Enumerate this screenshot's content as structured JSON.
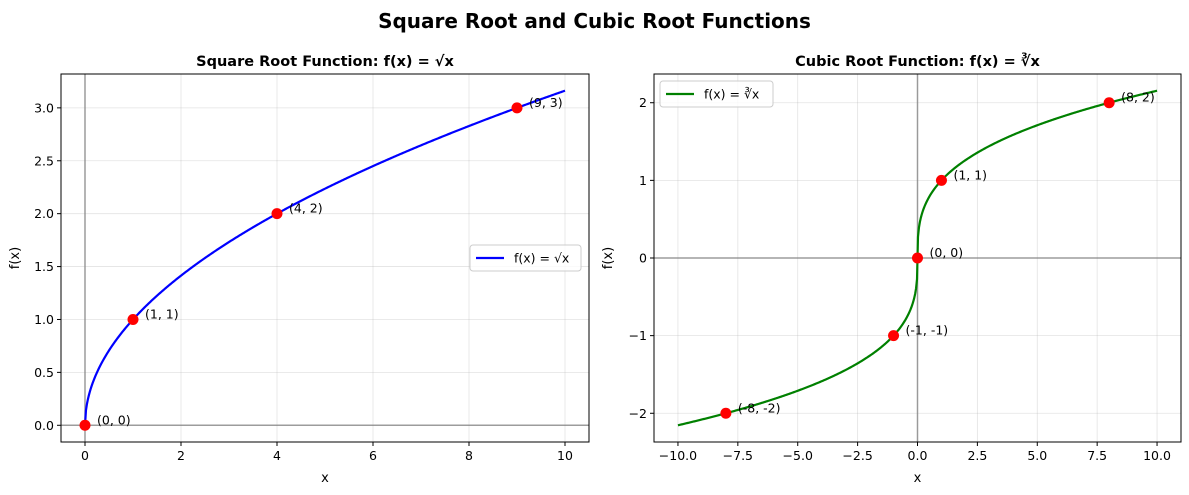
{
  "figure": {
    "title": "Square Root and Cubic Root Functions"
  },
  "chart_data": [
    {
      "type": "line",
      "title": "Square Root Function: f(x) = √x",
      "xlabel": "x",
      "ylabel": "f(x)",
      "xlim": [
        -0.5,
        10.5
      ],
      "ylim": [
        -0.158,
        3.32
      ],
      "xticks": [
        0,
        2,
        4,
        6,
        8,
        10
      ],
      "xtick_labels": [
        "0",
        "2",
        "4",
        "6",
        "8",
        "10"
      ],
      "yticks": [
        0.0,
        0.5,
        1.0,
        1.5,
        2.0,
        2.5,
        3.0
      ],
      "ytick_labels": [
        "0.0",
        "0.5",
        "1.0",
        "1.5",
        "2.0",
        "2.5",
        "3.0"
      ],
      "grid": true,
      "legend_position": "center-right",
      "series": [
        {
          "name": "f(x) = √x",
          "function": "sqrt",
          "x_range": [
            0,
            10
          ],
          "color": "#0000ff"
        }
      ],
      "points": [
        {
          "x": 0,
          "y": 0,
          "label": "(0, 0)"
        },
        {
          "x": 1,
          "y": 1,
          "label": "(1, 1)"
        },
        {
          "x": 4,
          "y": 2,
          "label": "(4, 2)"
        },
        {
          "x": 9,
          "y": 3,
          "label": "(9, 3)"
        }
      ],
      "point_color": "#ff0000"
    },
    {
      "type": "line",
      "title": "Cubic Root Function: f(x) = ∛x",
      "xlabel": "x",
      "ylabel": "f(x)",
      "xlim": [
        -11.0,
        11.0
      ],
      "ylim": [
        -2.37,
        2.37
      ],
      "xticks": [
        -10,
        -7.5,
        -5,
        -2.5,
        0,
        2.5,
        5,
        7.5,
        10
      ],
      "xtick_labels": [
        "−10.0",
        "−7.5",
        "−5.0",
        "−2.5",
        "0.0",
        "2.5",
        "5.0",
        "7.5",
        "10.0"
      ],
      "yticks": [
        -2,
        -1,
        0,
        1,
        2
      ],
      "ytick_labels": [
        "−2",
        "−1",
        "0",
        "1",
        "2"
      ],
      "grid": true,
      "legend_position": "upper-left",
      "series": [
        {
          "name": "f(x) = ∛x",
          "function": "cbrt",
          "x_range": [
            -10,
            10
          ],
          "color": "#008000"
        }
      ],
      "points": [
        {
          "x": -8,
          "y": -2,
          "label": "(-8, -2)"
        },
        {
          "x": -1,
          "y": -1,
          "label": "(-1, -1)"
        },
        {
          "x": 0,
          "y": 0,
          "label": "(0, 0)"
        },
        {
          "x": 1,
          "y": 1,
          "label": "(1, 1)"
        },
        {
          "x": 8,
          "y": 2,
          "label": "(8, 2)"
        }
      ],
      "point_color": "#ff0000"
    }
  ]
}
